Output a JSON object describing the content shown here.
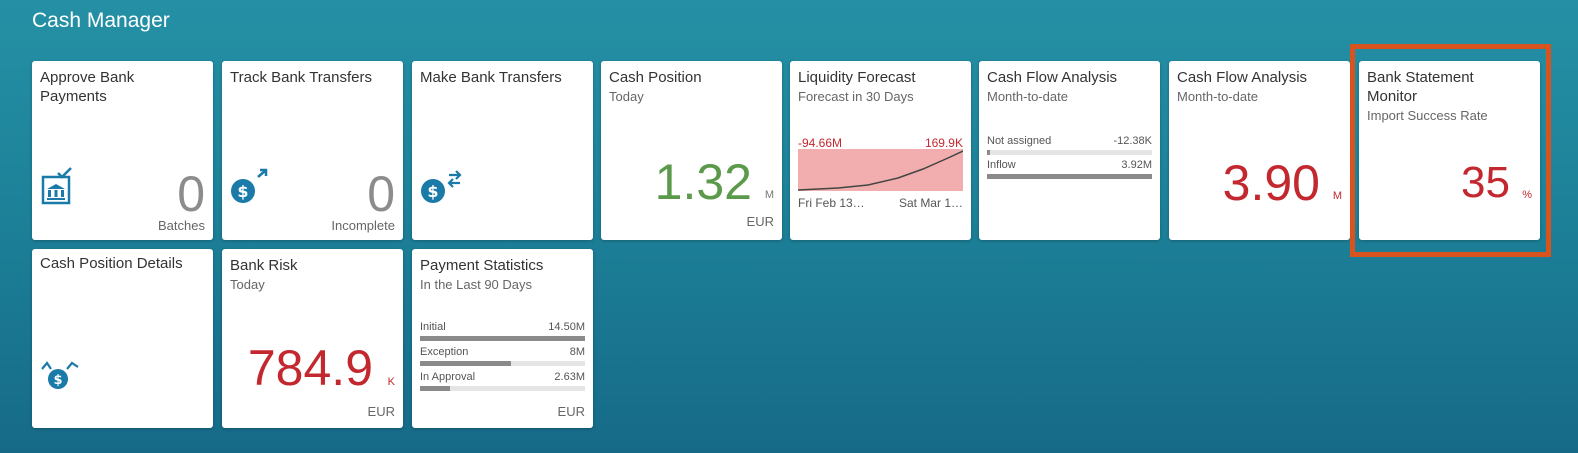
{
  "group_title": "Cash Manager",
  "tiles": {
    "approve": {
      "title": "Approve Bank Payments",
      "value": "0",
      "footer": "Batches"
    },
    "track": {
      "title": "Track Bank Transfers",
      "value": "0",
      "footer": "Incomplete"
    },
    "make": {
      "title": "Make Bank Transfers"
    },
    "cash_position": {
      "title": "Cash Position",
      "subtitle": "Today",
      "value": "1.32",
      "unit": "M",
      "footer": "EUR"
    },
    "liquidity": {
      "title": "Liquidity Forecast",
      "subtitle": "Forecast in 30 Days",
      "low_label": "-94.66M",
      "high_label": "169.9K",
      "x_start": "Fri Feb 13…",
      "x_end": "Sat Mar 1…"
    },
    "cfa1": {
      "title": "Cash Flow Analysis",
      "subtitle": "Month-to-date",
      "rows": [
        {
          "label": "Not assigned",
          "value": "-12.38K",
          "fill": 0.02
        },
        {
          "label": "Inflow",
          "value": "3.92M",
          "fill": 1.0
        }
      ]
    },
    "cfa2": {
      "title": "Cash Flow Analysis",
      "subtitle": "Month-to-date",
      "value": "3.90",
      "unit": "M"
    },
    "bsm": {
      "title": "Bank Statement Monitor",
      "subtitle": "Import Success Rate",
      "value": "35",
      "unit": "%"
    },
    "cpd": {
      "title": "Cash Position Details"
    },
    "bank_risk": {
      "title": "Bank Risk",
      "subtitle": "Today",
      "value": "784.9",
      "unit": "K",
      "footer": "EUR"
    },
    "payment_stats": {
      "title": "Payment Statistics",
      "subtitle": "In the Last 90 Days",
      "footer": "EUR",
      "rows": [
        {
          "label": "Initial",
          "value": "14.50M",
          "fill": 1.0
        },
        {
          "label": "Exception",
          "value": "8M",
          "fill": 0.55
        },
        {
          "label": "In Approval",
          "value": "2.63M",
          "fill": 0.18
        }
      ]
    }
  },
  "colors": {
    "accent": "#1a7aa8",
    "negative": "#c3282f",
    "positive": "#5a9a4a",
    "highlight": "#d9531e"
  }
}
